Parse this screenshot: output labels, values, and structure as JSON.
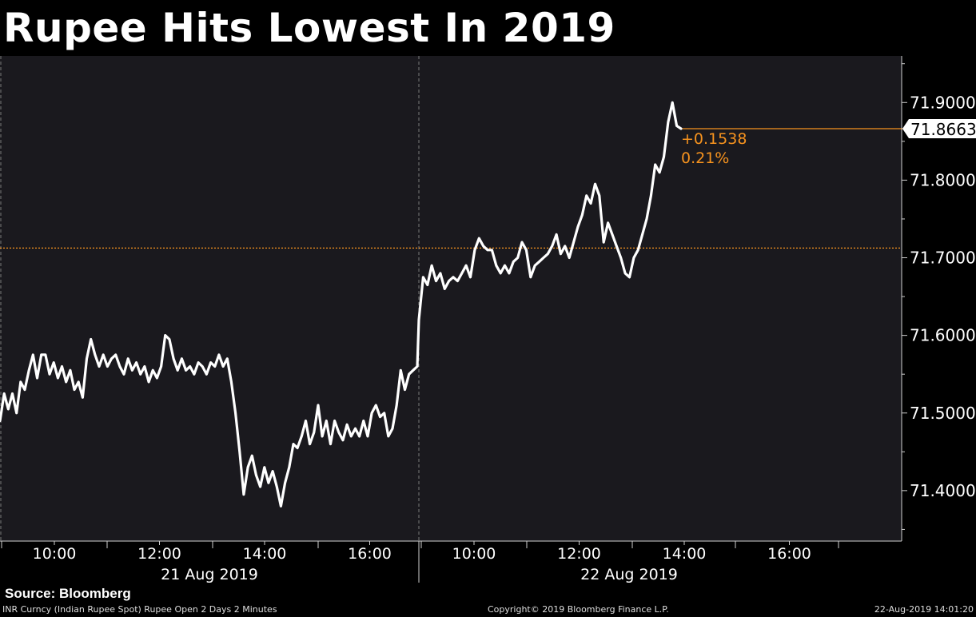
{
  "title": "Rupee Hits Lowest In 2019",
  "source": "Source: Bloomberg",
  "footer": {
    "left": "INR Curncy (Indian Rupee Spot) Rupee Open 2 Days 2 Minutes",
    "center": "Copyright© 2019 Bloomberg Finance L.P.",
    "right": "22-Aug-2019 14:01:20"
  },
  "colors": {
    "background": "#000000",
    "plot_bg": "#1a191e",
    "line": "#ffffff",
    "accent": "#f7931e"
  },
  "chart_data": {
    "type": "line",
    "ylim": [
      71.335,
      71.96
    ],
    "yticks": [
      "71.4000",
      "71.5000",
      "71.6000",
      "71.7000",
      "71.8000",
      "71.9000"
    ],
    "last_value": "71.8663",
    "change_abs": "+0.1538",
    "change_pct": "0.21%",
    "reference_level": 71.7125,
    "days": [
      {
        "date": "21 Aug 2019",
        "times": [
          "10:00",
          "12:00",
          "14:00",
          "16:00"
        ]
      },
      {
        "date": "22 Aug 2019",
        "times": [
          "10:00",
          "12:00",
          "14:00",
          "16:00"
        ]
      }
    ],
    "series": [
      {
        "values": [
          71.49,
          71.525,
          71.505,
          71.525,
          71.5,
          71.54,
          71.53,
          71.555,
          71.575,
          71.545,
          71.575,
          71.575,
          71.55,
          71.565,
          71.545,
          71.56,
          71.54,
          71.555,
          71.53,
          71.54,
          71.52,
          71.57,
          71.595,
          71.575,
          71.56,
          71.575,
          71.56,
          71.57,
          71.575,
          71.56,
          71.55,
          71.57,
          71.555,
          71.565,
          71.55,
          71.56,
          71.54,
          71.555,
          71.545,
          71.56,
          71.6,
          71.595,
          71.57,
          71.555,
          71.57,
          71.555,
          71.56,
          71.55,
          71.565,
          71.56,
          71.55,
          71.565,
          71.56,
          71.575,
          71.56,
          71.57,
          71.54,
          71.5,
          71.45,
          71.395,
          71.43,
          71.445,
          71.42,
          71.405,
          71.43,
          71.41,
          71.425,
          71.405,
          71.38,
          71.41,
          71.43,
          71.46,
          71.455,
          71.47,
          71.49,
          71.46,
          71.475,
          71.51,
          71.47,
          71.49,
          71.46,
          71.49,
          71.475,
          71.465,
          71.485,
          71.47,
          71.48,
          71.47,
          71.49,
          71.47,
          71.5,
          71.51,
          71.495,
          71.5,
          71.47,
          71.48,
          71.51,
          71.555,
          71.53,
          71.55,
          71.555,
          71.56,
          71.62,
          71.675,
          71.665,
          71.69,
          71.67,
          71.68,
          71.66,
          71.67,
          71.675,
          71.67,
          71.68,
          71.69,
          71.675,
          71.71,
          71.725,
          71.715,
          71.71,
          71.71,
          71.69,
          71.68,
          71.69,
          71.68,
          71.695,
          71.7,
          71.72,
          71.71,
          71.675,
          71.69,
          71.695,
          71.7,
          71.705,
          71.715,
          71.73,
          71.705,
          71.715,
          71.7,
          71.72,
          71.74,
          71.755,
          71.78,
          71.77,
          71.795,
          71.78,
          71.72,
          71.745,
          71.73,
          71.715,
          71.7,
          71.68,
          71.675,
          71.7,
          71.71,
          71.73,
          71.75,
          71.78,
          71.82,
          71.81,
          71.83,
          71.875,
          71.9,
          71.87,
          71.8663
        ]
      }
    ]
  }
}
